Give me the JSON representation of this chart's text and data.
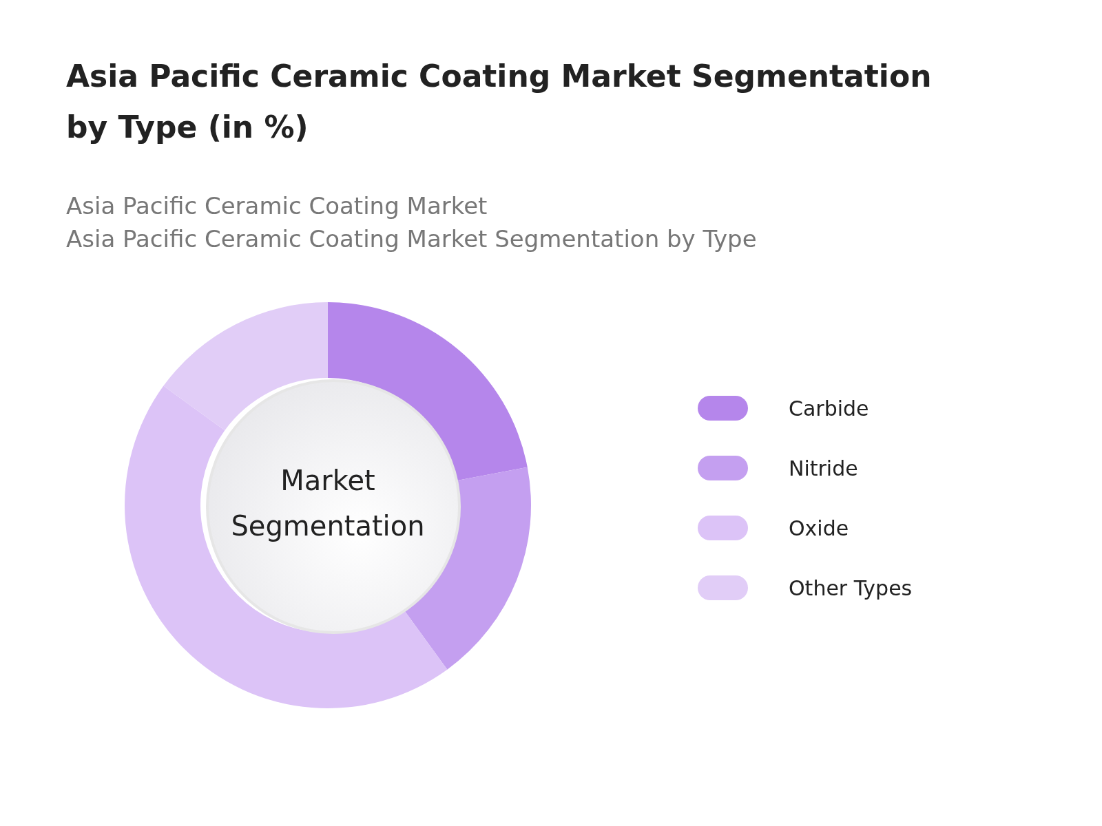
{
  "chart_data": {
    "type": "donut",
    "title": "Asia Pacific Ceramic Coating Market Segmentation by Type (in %)",
    "subtitle": "Asia Pacific Ceramic Coating Market\nAsia Pacific Ceramic Coating Market Segmentation by Type",
    "categories": [
      "Carbide",
      "Nitride",
      "Oxide",
      "Other Types"
    ],
    "values": [
      22,
      18,
      45,
      15
    ],
    "colors": [
      "#b586eb",
      "#c49ff0",
      "#dcc3f7",
      "#e1cdf7"
    ],
    "annotations": [
      "Market Segmentation"
    ],
    "legend": "right"
  }
}
